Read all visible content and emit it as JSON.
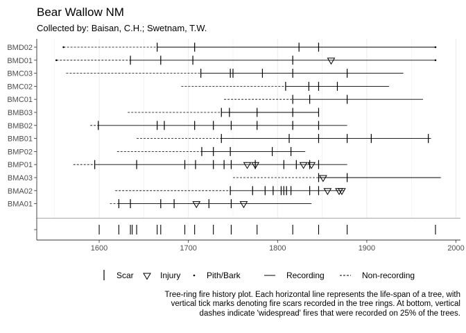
{
  "chart_data": {
    "type": "fire-history",
    "title": "Bear Wallow NM",
    "subtitle": "Collected by: Baisan, C.H.; Swetnam, T.W.",
    "xlim": [
      1530,
      2005
    ],
    "x_ticks": [
      "1600",
      "1700",
      "1800",
      "1900",
      "2000"
    ],
    "colors": {
      "axis": "#333333",
      "grid": "#ebebeb",
      "tick_text": "#4d4d4d",
      "scar": "#000000"
    },
    "trees": [
      {
        "name": "BMD02",
        "nonrec": [
          [
            1560,
            1665
          ]
        ],
        "rec": [
          [
            1665,
            1977
          ]
        ],
        "pith": 1560,
        "bark": 1977,
        "scars": [
          1665,
          1707,
          1824,
          1846
        ],
        "injuries": []
      },
      {
        "name": "BMD01",
        "nonrec": [
          [
            1552,
            1635
          ]
        ],
        "rec": [
          [
            1635,
            1977
          ]
        ],
        "pith": 1552,
        "bark": 1977,
        "scars": [
          1635,
          1669,
          1705,
          1817
        ],
        "injuries": [
          1860
        ]
      },
      {
        "name": "BMC03",
        "nonrec": [
          [
            1563,
            1714
          ]
        ],
        "rec": [
          [
            1714,
            1941
          ]
        ],
        "scars": [
          1714,
          1747,
          1750,
          1783,
          1817,
          1878
        ],
        "injuries": []
      },
      {
        "name": "BMC02",
        "nonrec": [
          [
            1692,
            1809
          ]
        ],
        "rec": [
          [
            1809,
            1925
          ]
        ],
        "scars": [
          1809,
          1835,
          1846,
          1867
        ],
        "injuries": []
      },
      {
        "name": "BMC01",
        "nonrec": [
          [
            1740,
            1817
          ]
        ],
        "rec": [
          [
            1817,
            1963
          ]
        ],
        "scars": [
          1817,
          1836,
          1878
        ],
        "injuries": []
      },
      {
        "name": "BMB03",
        "nonrec": [
          [
            1632,
            1737
          ]
        ],
        "rec": [
          [
            1737,
            1846
          ]
        ],
        "scars": [
          1737,
          1746,
          1777,
          1817,
          1846
        ],
        "injuries": []
      },
      {
        "name": "BMB02",
        "nonrec": [
          [
            1590,
            1599
          ]
        ],
        "rec": [
          [
            1599,
            1878
          ]
        ],
        "scars": [
          1599,
          1665,
          1673,
          1707,
          1728,
          1748,
          1777,
          1817,
          1846
        ],
        "injuries": []
      },
      {
        "name": "BMB01",
        "nonrec": [
          [
            1642,
            1737
          ]
        ],
        "rec": [
          [
            1737,
            1972
          ]
        ],
        "scars": [
          1737,
          1813,
          1846,
          1878,
          1905,
          1969
        ],
        "injuries": []
      },
      {
        "name": "BMP02",
        "nonrec": [
          [
            1620,
            1715
          ]
        ],
        "rec": [
          [
            1715,
            1831
          ]
        ],
        "scars": [
          1715,
          1728,
          1747,
          1794,
          1815
        ],
        "injuries": []
      },
      {
        "name": "BMP01",
        "nonrec": [
          [
            1571,
            1595
          ]
        ],
        "rec": [
          [
            1595,
            1878
          ]
        ],
        "scars": [
          1595,
          1642,
          1696,
          1708,
          1728,
          1740,
          1748,
          1775,
          1807,
          1821,
          1836,
          1846
        ],
        "injuries": [
          1766,
          1775,
          1829,
          1838
        ]
      },
      {
        "name": "BMA03",
        "nonrec": [
          [
            1750,
            1846
          ]
        ],
        "rec": [
          [
            1846,
            1983
          ]
        ],
        "scars": [
          1846,
          1878
        ],
        "injuries": [
          1851
        ]
      },
      {
        "name": "BMA02",
        "nonrec": [
          [
            1618,
            1747
          ]
        ],
        "rec": [
          [
            1747,
            1875
          ]
        ],
        "scars": [
          1747,
          1772,
          1786,
          1795,
          1804,
          1807,
          1810,
          1815,
          1836,
          1846
        ],
        "injuries": [
          1856,
          1869,
          1872
        ]
      },
      {
        "name": "BMA01",
        "nonrec": [
          [
            1612,
            1622
          ]
        ],
        "rec": [
          [
            1622,
            1838
          ]
        ],
        "scars": [
          1622,
          1635,
          1669,
          1684,
          1723,
          1748
        ],
        "injuries": [
          1709,
          1762
        ]
      }
    ],
    "composite": {
      "label": "",
      "years": [
        1600,
        1622,
        1635,
        1637,
        1642,
        1665,
        1669,
        1696,
        1707,
        1728,
        1748,
        1777,
        1817,
        1846,
        1878,
        1977
      ]
    },
    "legend": {
      "scar": "Scar",
      "injury": "Injury",
      "pith": "Pith/Bark",
      "recording": "Recording",
      "nonrecording": "Non-recording"
    }
  },
  "caption": "Tree-ring fire history plot. Each horizontal line represents the life-span of a tree, with vertical tick marks denoting  fire scars recorded in the tree rings. At bottom, vertical dashes indicate 'widespread' fires that were recorded on 25% of the trees."
}
